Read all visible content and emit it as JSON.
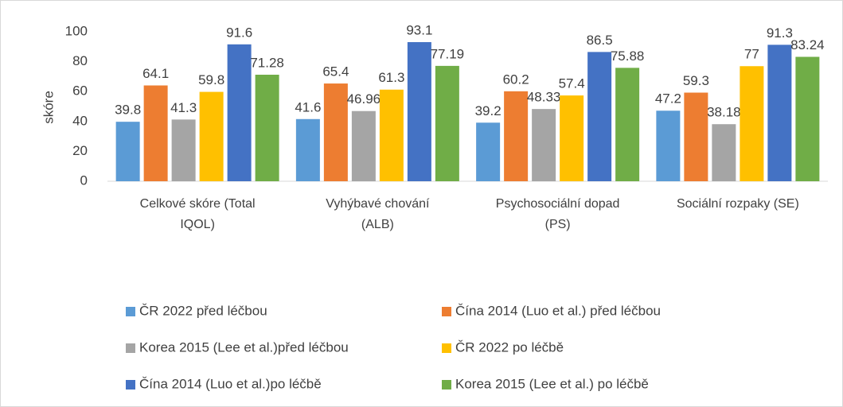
{
  "chart_data": {
    "type": "bar",
    "y_label": "skóre",
    "categories": [
      "Celkové skóre (Total IQOL)",
      "Vyhýbavé chování (ALB)",
      "Psychosociální dopad (PS)",
      "Sociální rozpaky (SE)"
    ],
    "series": [
      {
        "name": "ČR 2022 před léčbou",
        "color": "#5b9bd5",
        "values": [
          39.8,
          41.6,
          39.2,
          47.2
        ]
      },
      {
        "name": "Čína 2014 (Luo et al.) před léčbou",
        "color": "#ed7d31",
        "values": [
          64.1,
          65.4,
          60.2,
          59.3
        ]
      },
      {
        "name": "Korea 2015 (Lee et al.)před léčbou",
        "color": "#a5a5a5",
        "values": [
          41.3,
          46.96,
          48.33,
          38.18
        ]
      },
      {
        "name": "ČR 2022 po léčbě",
        "color": "#ffc000",
        "values": [
          59.8,
          61.3,
          57.4,
          77
        ]
      },
      {
        "name": "Čína 2014 (Luo et al.)po léčbě",
        "color": "#4472c4",
        "values": [
          91.6,
          93.1,
          86.5,
          91.3
        ]
      },
      {
        "name": "Korea 2015 (Lee et al.) po léčbě",
        "color": "#70ad47",
        "values": [
          71.28,
          77.19,
          75.88,
          83.24
        ]
      }
    ],
    "ylim": [
      0,
      100
    ],
    "yticks": [
      0,
      20,
      40,
      60,
      80,
      100
    ],
    "grid": false,
    "legend": "bottom"
  }
}
